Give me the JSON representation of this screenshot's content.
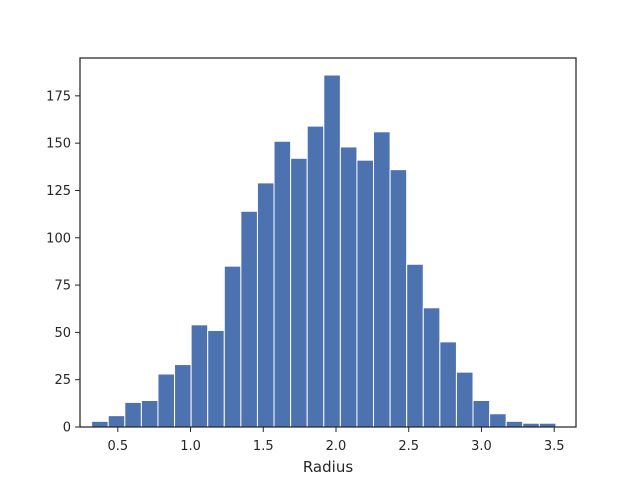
{
  "chart_data": {
    "type": "bar",
    "title": "",
    "xlabel": "Radius",
    "ylabel": "",
    "xlim": [
      0.24,
      3.65
    ],
    "ylim": [
      0,
      195
    ],
    "grid": false,
    "bar_color": "#4c72b0",
    "edge_color": "#ffffff",
    "bins": [
      {
        "x0": 0.32,
        "x1": 0.434,
        "count": 3
      },
      {
        "x0": 0.434,
        "x1": 0.548,
        "count": 6
      },
      {
        "x0": 0.548,
        "x1": 0.662,
        "count": 13
      },
      {
        "x0": 0.662,
        "x1": 0.776,
        "count": 14
      },
      {
        "x0": 0.776,
        "x1": 0.89,
        "count": 28
      },
      {
        "x0": 0.89,
        "x1": 1.004,
        "count": 33
      },
      {
        "x0": 1.004,
        "x1": 1.118,
        "count": 54
      },
      {
        "x0": 1.118,
        "x1": 1.232,
        "count": 51
      },
      {
        "x0": 1.232,
        "x1": 1.346,
        "count": 85
      },
      {
        "x0": 1.346,
        "x1": 1.46,
        "count": 114
      },
      {
        "x0": 1.46,
        "x1": 1.574,
        "count": 129
      },
      {
        "x0": 1.574,
        "x1": 1.688,
        "count": 151
      },
      {
        "x0": 1.688,
        "x1": 1.802,
        "count": 142
      },
      {
        "x0": 1.802,
        "x1": 1.916,
        "count": 159
      },
      {
        "x0": 1.916,
        "x1": 2.03,
        "count": 186
      },
      {
        "x0": 2.03,
        "x1": 2.144,
        "count": 148
      },
      {
        "x0": 2.144,
        "x1": 2.258,
        "count": 141
      },
      {
        "x0": 2.258,
        "x1": 2.372,
        "count": 156
      },
      {
        "x0": 2.372,
        "x1": 2.486,
        "count": 136
      },
      {
        "x0": 2.486,
        "x1": 2.6,
        "count": 86
      },
      {
        "x0": 2.6,
        "x1": 2.714,
        "count": 63
      },
      {
        "x0": 2.714,
        "x1": 2.828,
        "count": 45
      },
      {
        "x0": 2.828,
        "x1": 2.942,
        "count": 29
      },
      {
        "x0": 2.942,
        "x1": 3.056,
        "count": 14
      },
      {
        "x0": 3.056,
        "x1": 3.17,
        "count": 7
      },
      {
        "x0": 3.17,
        "x1": 3.284,
        "count": 3
      },
      {
        "x0": 3.284,
        "x1": 3.398,
        "count": 2
      },
      {
        "x0": 3.398,
        "x1": 3.512,
        "count": 2
      }
    ],
    "x_ticks": [
      {
        "value": 0.5,
        "label": "0.5"
      },
      {
        "value": 1.0,
        "label": "1.0"
      },
      {
        "value": 1.5,
        "label": "1.5"
      },
      {
        "value": 2.0,
        "label": "2.0"
      },
      {
        "value": 2.5,
        "label": "2.5"
      },
      {
        "value": 3.0,
        "label": "3.0"
      },
      {
        "value": 3.5,
        "label": "3.5"
      }
    ],
    "y_ticks": [
      {
        "value": 0,
        "label": "0"
      },
      {
        "value": 25,
        "label": "25"
      },
      {
        "value": 50,
        "label": "50"
      },
      {
        "value": 75,
        "label": "75"
      },
      {
        "value": 100,
        "label": "100"
      },
      {
        "value": 125,
        "label": "125"
      },
      {
        "value": 150,
        "label": "150"
      },
      {
        "value": 175,
        "label": "175"
      }
    ]
  }
}
